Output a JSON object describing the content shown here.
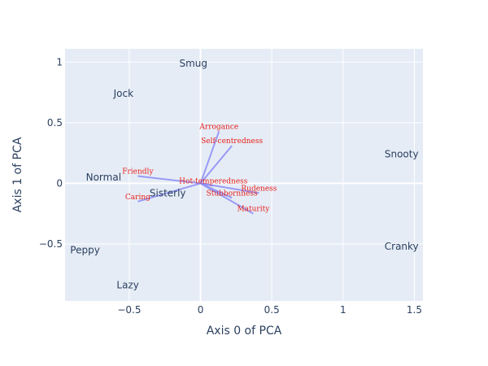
{
  "chart_data": {
    "type": "scatter",
    "xlabel": "Axis 0 of PCA",
    "ylabel": "Axis 1 of PCA",
    "xlim": [
      -0.95,
      1.56
    ],
    "ylim": [
      -0.97,
      1.11
    ],
    "x_ticks": [
      -0.5,
      0,
      0.5,
      1,
      1.5
    ],
    "x_tick_labels": [
      "−0.5",
      "0",
      "0.5",
      "1",
      "1.5"
    ],
    "y_ticks": [
      -0.5,
      0,
      0.5,
      1
    ],
    "y_tick_labels": [
      "−0.5",
      "0",
      "0.5",
      "1"
    ],
    "grid": true,
    "colors": {
      "plot_bg": "#e5ecf6",
      "grid": "#ffffff",
      "text": "#2a3f5f",
      "vector": "#8c8cf5",
      "vector_label": "#e8201a"
    },
    "points": [
      {
        "label": "Smug",
        "x": -0.05,
        "y": 0.99
      },
      {
        "label": "Jock",
        "x": -0.54,
        "y": 0.74
      },
      {
        "label": "Snooty",
        "x": 1.41,
        "y": 0.24
      },
      {
        "label": "Normal",
        "x": -0.68,
        "y": 0.05
      },
      {
        "label": "Sisterly",
        "x": -0.23,
        "y": -0.08
      },
      {
        "label": "Peppy",
        "x": -0.81,
        "y": -0.55
      },
      {
        "label": "Cranky",
        "x": 1.41,
        "y": -0.52
      },
      {
        "label": "Lazy",
        "x": -0.51,
        "y": -0.84
      }
    ],
    "vectors": [
      {
        "label": "Arrogance",
        "x": 0.13,
        "y": 0.43
      },
      {
        "label": "Self-centredness",
        "x": 0.22,
        "y": 0.31
      },
      {
        "label": "Friendly",
        "x": -0.44,
        "y": 0.06
      },
      {
        "label": "Caring",
        "x": -0.44,
        "y": -0.15
      },
      {
        "label": "Hot-temperedness",
        "x": 0.09,
        "y": -0.02
      },
      {
        "label": "Rudeness",
        "x": 0.41,
        "y": -0.08
      },
      {
        "label": "Stubbornness",
        "x": 0.22,
        "y": -0.12
      },
      {
        "label": "Maturity",
        "x": 0.37,
        "y": -0.25
      }
    ]
  }
}
